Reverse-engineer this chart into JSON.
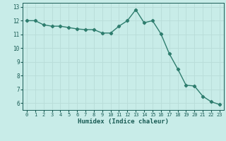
{
  "x": [
    0,
    1,
    2,
    3,
    4,
    5,
    6,
    7,
    8,
    9,
    10,
    11,
    12,
    13,
    14,
    15,
    16,
    17,
    18,
    19,
    20,
    21,
    22,
    23
  ],
  "y": [
    12.0,
    12.0,
    11.7,
    11.6,
    11.6,
    11.5,
    11.4,
    11.35,
    11.35,
    11.1,
    11.1,
    11.6,
    12.0,
    12.8,
    11.85,
    12.0,
    11.05,
    9.6,
    8.5,
    7.3,
    7.25,
    6.5,
    6.1,
    5.9
  ],
  "xlabel": "Humidex (Indice chaleur)",
  "line_color": "#2e7d6e",
  "bg_color": "#c8ece8",
  "grid_color": "#b8dcd8",
  "text_color": "#1a5c55",
  "xlim": [
    -0.5,
    23.5
  ],
  "ylim": [
    5.5,
    13.3
  ],
  "yticks": [
    6,
    7,
    8,
    9,
    10,
    11,
    12,
    13
  ],
  "xticks": [
    0,
    1,
    2,
    3,
    4,
    5,
    6,
    7,
    8,
    9,
    10,
    11,
    12,
    13,
    14,
    15,
    16,
    17,
    18,
    19,
    20,
    21,
    22,
    23
  ],
  "marker": "D",
  "marker_size": 2.2,
  "line_width": 1.0
}
